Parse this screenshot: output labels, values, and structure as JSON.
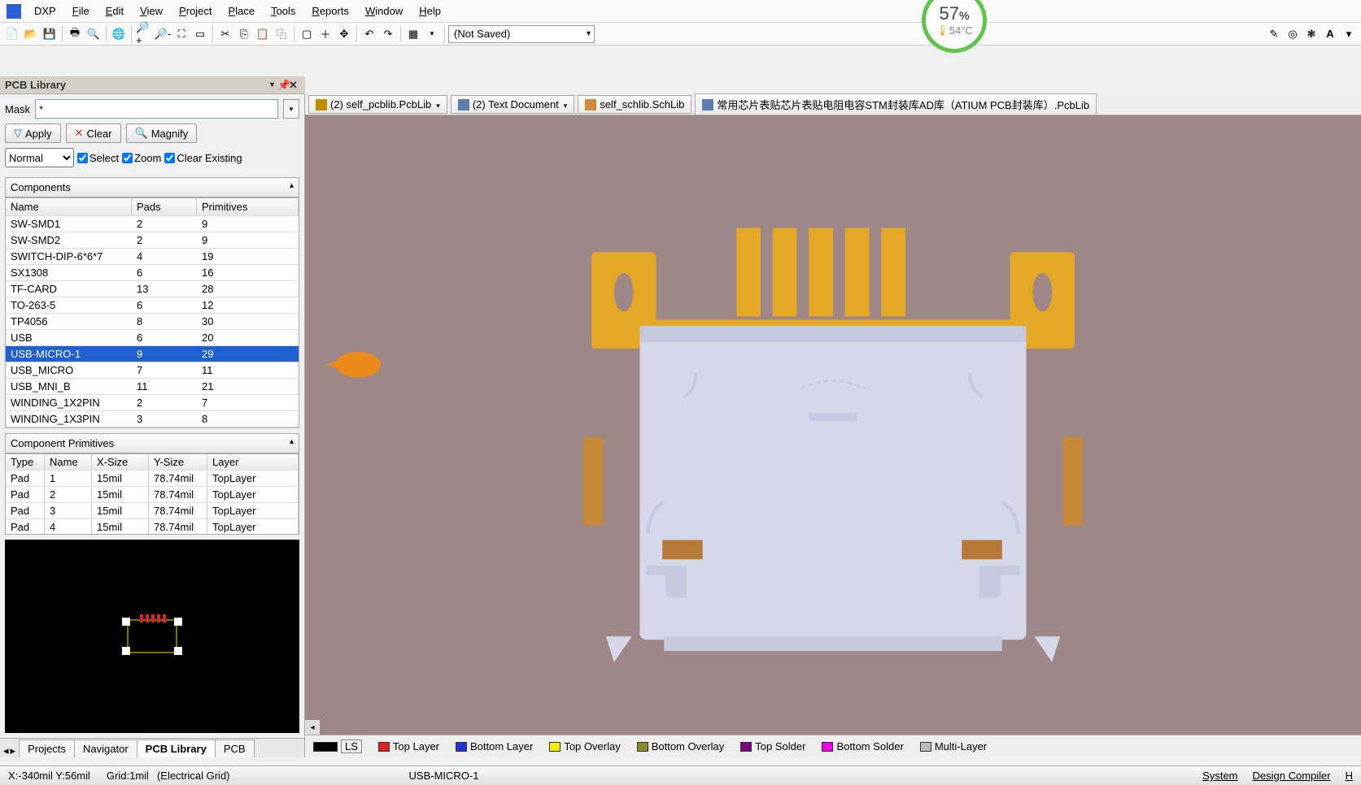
{
  "menu": {
    "items": [
      "DXP",
      "File",
      "Edit",
      "View",
      "Project",
      "Place",
      "Tools",
      "Reports",
      "Window",
      "Help"
    ],
    "underline": [
      0,
      0,
      0,
      0,
      0,
      0,
      0,
      0,
      0,
      0
    ]
  },
  "cpu": {
    "pct": "57",
    "unit": "%",
    "temp": "54°C"
  },
  "toolbar": {
    "save_state": "(Not Saved)"
  },
  "panel": {
    "title": "PCB Library",
    "mask_label": "Mask",
    "mask_value": "*",
    "apply": "Apply",
    "clear": "Clear",
    "magnify": "Magnify",
    "mode": "Normal",
    "select": "Select",
    "zoom": "Zoom",
    "clearex": "Clear Existing"
  },
  "components": {
    "header": "Components",
    "cols": [
      "Name",
      "Pads",
      "Primitives"
    ],
    "rows": [
      {
        "name": "SW-SMD1",
        "pads": "2",
        "prim": "9"
      },
      {
        "name": "SW-SMD2",
        "pads": "2",
        "prim": "9"
      },
      {
        "name": "SWITCH-DIP-6*6*7",
        "pads": "4",
        "prim": "19"
      },
      {
        "name": "SX1308",
        "pads": "6",
        "prim": "16"
      },
      {
        "name": "TF-CARD",
        "pads": "13",
        "prim": "28"
      },
      {
        "name": "TO-263-5",
        "pads": "6",
        "prim": "12"
      },
      {
        "name": "TP4056",
        "pads": "8",
        "prim": "30"
      },
      {
        "name": "USB",
        "pads": "6",
        "prim": "20"
      },
      {
        "name": "USB-MICRO-1",
        "pads": "9",
        "prim": "29",
        "selected": true
      },
      {
        "name": "USB_MICRO",
        "pads": "7",
        "prim": "11"
      },
      {
        "name": "USB_MNI_B",
        "pads": "11",
        "prim": "21"
      },
      {
        "name": "WINDING_1X2PIN",
        "pads": "2",
        "prim": "7"
      },
      {
        "name": "WINDING_1X3PIN",
        "pads": "3",
        "prim": "8"
      }
    ]
  },
  "primitives": {
    "header": "Component Primitives",
    "cols": [
      "Type",
      "Name",
      "X-Size",
      "Y-Size",
      "Layer"
    ],
    "rows": [
      {
        "t": "Pad",
        "n": "1",
        "x": "15mil",
        "y": "78.74mil",
        "l": "TopLayer"
      },
      {
        "t": "Pad",
        "n": "2",
        "x": "15mil",
        "y": "78.74mil",
        "l": "TopLayer"
      },
      {
        "t": "Pad",
        "n": "3",
        "x": "15mil",
        "y": "78.74mil",
        "l": "TopLayer"
      },
      {
        "t": "Pad",
        "n": "4",
        "x": "15mil",
        "y": "78.74mil",
        "l": "TopLayer"
      }
    ]
  },
  "left_tabs": [
    "Projects",
    "Navigator",
    "PCB Library",
    "PCB"
  ],
  "left_active": 2,
  "doc_tabs": [
    {
      "label": "(2) self_pcblib.PcbLib",
      "dd": true,
      "ico": "#c48a00"
    },
    {
      "label": "(2) Text Document",
      "dd": true,
      "ico": "#5a7fb0"
    },
    {
      "label": "self_schlib.SchLib",
      "dd": false,
      "ico": "#d08a3c"
    },
    {
      "label": "常用芯片表贴芯片表贴电阻电容STM封装库AD库（ATIUM PCB封装库）.PcbLib",
      "dd": false,
      "ico": "#5a7fb0"
    }
  ],
  "layers": [
    {
      "label": "LS",
      "color": "#000000",
      "boxed": true
    },
    {
      "label": "Top Layer",
      "color": "#d22"
    },
    {
      "label": "Bottom Layer",
      "color": "#23d"
    },
    {
      "label": "Top Overlay",
      "color": "#ee0"
    },
    {
      "label": "Bottom Overlay",
      "color": "#8a8a2a"
    },
    {
      "label": "Top Solder",
      "color": "#800080"
    },
    {
      "label": "Bottom Solder",
      "color": "#e0e"
    },
    {
      "label": "Multi-Layer",
      "color": "#bbb"
    }
  ],
  "status": {
    "coord": "X:-340mil Y:56mil",
    "grid": "Grid:1mil",
    "mode": "(Electrical Grid)",
    "component": "USB-MICRO-1",
    "right": [
      "System",
      "Design Compiler",
      "H"
    ]
  },
  "colors": {
    "viewport_bg": "#a08787",
    "copper": "#e5a826",
    "body": "#d5d8e8",
    "body_shadow": "#b8bcd4",
    "tab_brown": "#b87838"
  }
}
